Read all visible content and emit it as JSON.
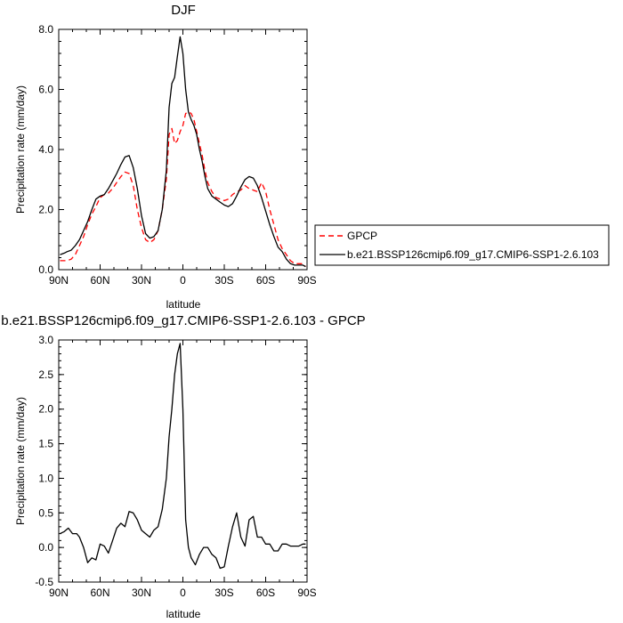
{
  "chart_data": [
    {
      "type": "line",
      "title": "DJF",
      "xlabel": "latitude",
      "ylabel": "Precipitation rate (mm/day)",
      "xlim": [
        90,
        -90
      ],
      "ylim": [
        0,
        8
      ],
      "x_ticks": [
        90,
        60,
        30,
        0,
        -30,
        -60,
        -90
      ],
      "x_tick_labels": [
        "90N",
        "60N",
        "30N",
        "0",
        "30S",
        "60S",
        "90S"
      ],
      "y_ticks": [
        0,
        2,
        4,
        6,
        8
      ],
      "y_tick_labels": [
        "0.0",
        "2.0",
        "4.0",
        "6.0",
        "8.0"
      ],
      "legend_position": "right",
      "series": [
        {
          "name": "GPCP",
          "color": "#ff0000",
          "dash": true,
          "x": [
            89,
            86,
            84,
            81,
            78,
            75,
            72,
            69,
            66,
            63,
            60,
            57,
            54,
            51,
            48,
            45,
            42,
            39,
            36,
            33,
            30,
            27,
            24,
            21,
            18,
            15,
            12,
            10,
            8,
            6,
            4,
            2,
            0,
            -2,
            -4,
            -6,
            -8,
            -10,
            -12,
            -14,
            -16,
            -18,
            -21,
            -24,
            -27,
            -30,
            -33,
            -36,
            -39,
            -42,
            -45,
            -48,
            -51,
            -54,
            -57,
            -60,
            -63,
            -66,
            -69,
            -72,
            -75,
            -78,
            -81,
            -84,
            -87,
            -89
          ],
          "y": [
            0.3,
            0.3,
            0.3,
            0.35,
            0.5,
            0.8,
            1.1,
            1.5,
            1.85,
            2.1,
            2.4,
            2.5,
            2.55,
            2.7,
            2.9,
            3.1,
            3.25,
            3.2,
            2.8,
            2.0,
            1.4,
            1.0,
            0.9,
            1.0,
            1.3,
            2.0,
            3.0,
            4.5,
            4.7,
            4.2,
            4.3,
            4.6,
            4.8,
            5.2,
            5.25,
            5.2,
            5.0,
            4.6,
            4.2,
            3.8,
            3.3,
            2.9,
            2.6,
            2.4,
            2.35,
            2.3,
            2.35,
            2.5,
            2.6,
            2.65,
            2.8,
            2.7,
            2.65,
            2.6,
            2.9,
            2.6,
            2.0,
            1.5,
            1.0,
            0.7,
            0.5,
            0.3,
            0.2,
            0.2,
            0.2,
            0.1
          ]
        },
        {
          "name": "b.e21.BSSP126cmip6.f09_g17.CMIP6-SSP1-2.6.103",
          "color": "#000000",
          "dash": false,
          "x": [
            89,
            86,
            84,
            81,
            78,
            75,
            72,
            69,
            66,
            63,
            60,
            57,
            54,
            51,
            48,
            45,
            42,
            39,
            36,
            33,
            30,
            27,
            24,
            21,
            18,
            15,
            12,
            10,
            8,
            6,
            4,
            2,
            0,
            -2,
            -4,
            -6,
            -8,
            -10,
            -12,
            -14,
            -16,
            -18,
            -21,
            -24,
            -27,
            -30,
            -33,
            -36,
            -39,
            -42,
            -45,
            -48,
            -51,
            -54,
            -57,
            -60,
            -63,
            -66,
            -69,
            -72,
            -75,
            -78,
            -81,
            -84,
            -87,
            -89
          ],
          "y": [
            0.5,
            0.55,
            0.6,
            0.65,
            0.8,
            1.0,
            1.3,
            1.6,
            2.0,
            2.35,
            2.45,
            2.5,
            2.7,
            2.95,
            3.2,
            3.5,
            3.75,
            3.8,
            3.4,
            2.7,
            1.8,
            1.2,
            1.05,
            1.1,
            1.3,
            2.0,
            3.3,
            5.4,
            6.2,
            6.4,
            7.1,
            7.75,
            7.2,
            6.0,
            5.25,
            5.0,
            4.8,
            4.5,
            4.0,
            3.6,
            3.1,
            2.7,
            2.45,
            2.35,
            2.25,
            2.15,
            2.1,
            2.2,
            2.45,
            2.75,
            3.0,
            3.1,
            3.05,
            2.8,
            2.4,
            1.95,
            1.5,
            1.1,
            0.75,
            0.6,
            0.35,
            0.2,
            0.15,
            0.15,
            0.15,
            0.1
          ]
        }
      ]
    },
    {
      "type": "line",
      "title": "b.e21.BSSP126cmip6.f09_g17.CMIP6-SSP1-2.6.103 - GPCP",
      "xlabel": "latitude",
      "ylabel": "Precipitation rate (mm/day)",
      "xlim": [
        90,
        -90
      ],
      "ylim": [
        -0.5,
        3.0
      ],
      "x_ticks": [
        90,
        60,
        30,
        0,
        -30,
        -60,
        -90
      ],
      "x_tick_labels": [
        "90N",
        "60N",
        "30N",
        "0",
        "30S",
        "60S",
        "90S"
      ],
      "y_ticks": [
        -0.5,
        0.0,
        0.5,
        1.0,
        1.5,
        2.0,
        2.5,
        3.0
      ],
      "y_tick_labels": [
        "-0.5",
        "0.0",
        "0.5",
        "1.0",
        "1.5",
        "2.0",
        "2.5",
        "3.0"
      ],
      "series": [
        {
          "color": "#000000",
          "dash": false,
          "x": [
            89,
            86,
            83,
            80,
            77,
            75,
            72,
            69,
            66,
            63,
            60,
            57,
            54,
            51,
            48,
            45,
            42,
            39,
            36,
            33,
            30,
            27,
            24,
            21,
            18,
            15,
            12,
            10,
            8,
            6,
            4,
            2,
            0,
            -2,
            -4,
            -6,
            -9,
            -12,
            -15,
            -18,
            -21,
            -24,
            -27,
            -30,
            -33,
            -36,
            -39,
            -42,
            -45,
            -48,
            -51,
            -54,
            -57,
            -60,
            -63,
            -66,
            -69,
            -72,
            -75,
            -78,
            -81,
            -84,
            -87,
            -89
          ],
          "y": [
            0.2,
            0.23,
            0.28,
            0.2,
            0.2,
            0.15,
            0.0,
            -0.22,
            -0.15,
            -0.18,
            0.05,
            0.02,
            -0.08,
            0.1,
            0.28,
            0.35,
            0.3,
            0.52,
            0.5,
            0.4,
            0.25,
            0.2,
            0.15,
            0.25,
            0.3,
            0.55,
            1.0,
            1.6,
            2.0,
            2.5,
            2.8,
            2.95,
            2.0,
            0.4,
            0.0,
            -0.15,
            -0.25,
            -0.1,
            0.0,
            0.0,
            -0.1,
            -0.15,
            -0.3,
            -0.28,
            0.02,
            0.3,
            0.5,
            0.15,
            0.02,
            0.4,
            0.45,
            0.15,
            0.15,
            0.05,
            0.05,
            -0.05,
            -0.05,
            0.05,
            0.05,
            0.02,
            0.02,
            0.02,
            0.05,
            0.05
          ]
        }
      ]
    }
  ]
}
